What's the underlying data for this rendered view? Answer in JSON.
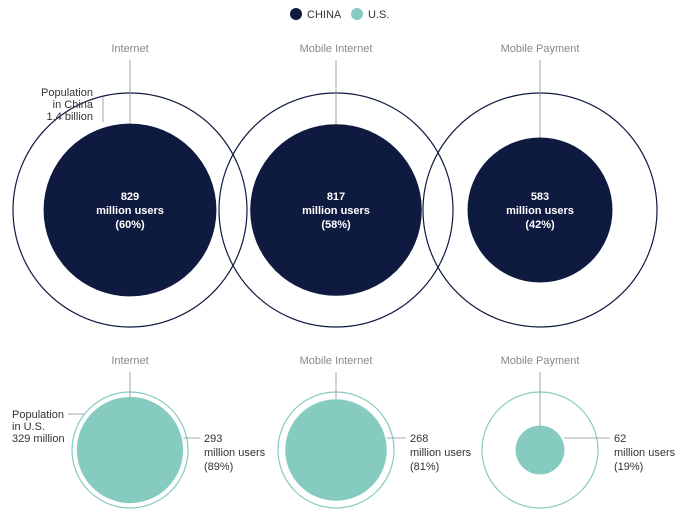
{
  "chart_data": {
    "type": "bubble",
    "legend": {
      "position": "top-center",
      "entries": [
        {
          "label": "CHINA",
          "color": "#0f1a40"
        },
        {
          "label": "U.S.",
          "color": "#86cbc0"
        }
      ]
    },
    "categories": [
      "Internet",
      "Mobile Internet",
      "Mobile Payment"
    ],
    "series": [
      {
        "name": "CHINA",
        "color": "#0f1a40",
        "population_label": [
          "Population",
          "in China",
          "1.4 billion"
        ],
        "population": 1400,
        "values": [
          829,
          817,
          583
        ],
        "value_labels": [
          [
            "829",
            "million users",
            "(60%)"
          ],
          [
            "817",
            "million users",
            "(58%)"
          ],
          [
            "583",
            "million users",
            "(42%)"
          ]
        ]
      },
      {
        "name": "U.S.",
        "color": "#86cbc0",
        "population_label": [
          "Population",
          "in U.S.",
          "329 million"
        ],
        "population": 329,
        "values": [
          293,
          268,
          62
        ],
        "value_labels": [
          [
            "293",
            "million users",
            "(89%)"
          ],
          [
            "268",
            "million users",
            "(81%)"
          ],
          [
            "62",
            "million users",
            "(19%)"
          ]
        ]
      }
    ]
  }
}
